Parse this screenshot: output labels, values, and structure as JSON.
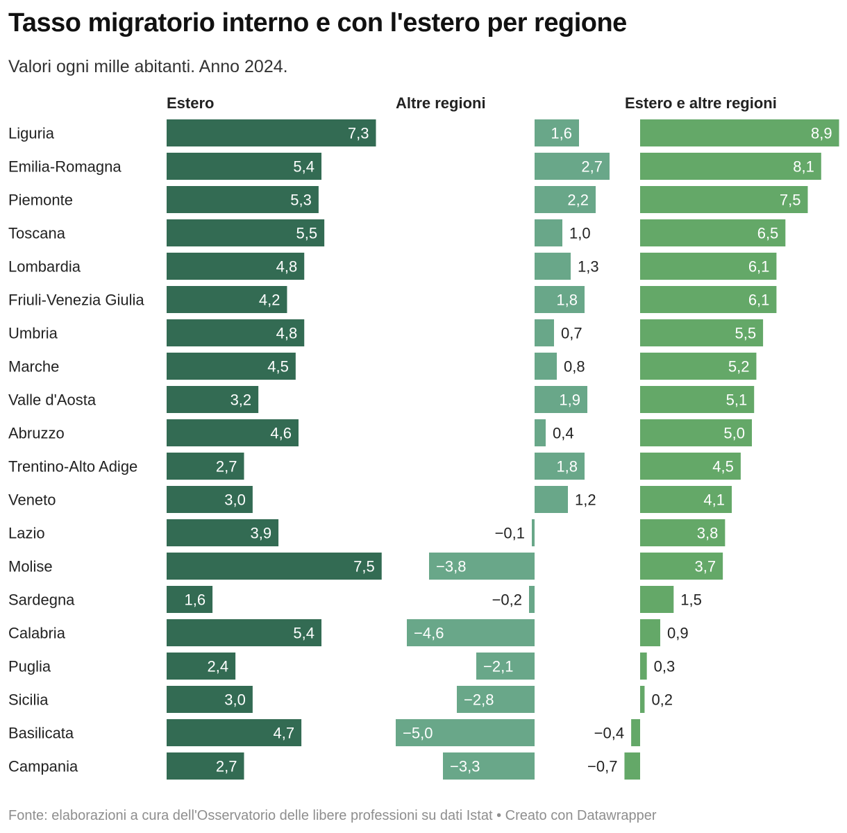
{
  "header": {
    "title": "Tasso migratorio interno e con l'estero per regione",
    "subtitle": "Valori ogni mille abitanti. Anno 2024."
  },
  "footer": {
    "source": "Fonte: elaborazioni a cura dell'Osservatorio delle libere professioni su dati Istat • Creato con Datawrapper"
  },
  "colors": {
    "estero": "#336b53",
    "altre_regioni": "#69a789",
    "totale": "#64a868"
  },
  "chart_data": {
    "type": "bar",
    "orientation": "horizontal",
    "categories": [
      "Liguria",
      "Emilia-Romagna",
      "Piemonte",
      "Toscana",
      "Lombardia",
      "Friuli-Venezia Giulia",
      "Umbria",
      "Marche",
      "Valle d'Aosta",
      "Abruzzo",
      "Trentino-Alto Adige",
      "Veneto",
      "Lazio",
      "Molise",
      "Sardegna",
      "Calabria",
      "Puglia",
      "Sicilia",
      "Basilicata",
      "Campania"
    ],
    "series": [
      {
        "name": "Estero",
        "values": [
          7.3,
          5.4,
          5.3,
          5.5,
          4.8,
          4.2,
          4.8,
          4.5,
          3.2,
          4.6,
          2.7,
          3.0,
          3.9,
          7.5,
          1.6,
          5.4,
          2.4,
          3.0,
          4.7,
          2.7
        ]
      },
      {
        "name": "Altre regioni",
        "values": [
          1.6,
          2.7,
          2.2,
          1.0,
          1.3,
          1.8,
          0.7,
          0.8,
          1.9,
          0.4,
          1.8,
          1.2,
          -0.1,
          -3.8,
          -0.2,
          -4.6,
          -2.1,
          -2.8,
          -5.0,
          -3.3
        ]
      },
      {
        "name": "Estero e altre regioni",
        "values": [
          8.9,
          8.1,
          7.5,
          6.5,
          6.1,
          6.1,
          5.5,
          5.2,
          5.1,
          5.0,
          4.5,
          4.1,
          3.8,
          3.7,
          1.5,
          0.9,
          0.3,
          0.2,
          -0.4,
          -0.7
        ]
      }
    ],
    "value_labels": [
      [
        "7,3",
        "5,4",
        "5,3",
        "5,5",
        "4,8",
        "4,2",
        "4,8",
        "4,5",
        "3,2",
        "4,6",
        "2,7",
        "3,0",
        "3,9",
        "7,5",
        "1,6",
        "5,4",
        "2,4",
        "3,0",
        "4,7",
        "2,7"
      ],
      [
        "1,6",
        "2,7",
        "2,2",
        "1,0",
        "1,3",
        "1,8",
        "0,7",
        "0,8",
        "1,9",
        "0,4",
        "1,8",
        "1,2",
        "−0,1",
        "−3,8",
        "−0,2",
        "−4,6",
        "−2,1",
        "−2,8",
        "−5,0",
        "−3,3"
      ],
      [
        "8,9",
        "8,1",
        "7,5",
        "6,5",
        "6,1",
        "6,1",
        "5,5",
        "5,2",
        "5,1",
        "5,0",
        "4,5",
        "4,1",
        "3,8",
        "3,7",
        "1,5",
        "0,9",
        "0,3",
        "0,2",
        "−0,4",
        "−0,7"
      ]
    ],
    "title": "Tasso migratorio interno e con l'estero per regione",
    "subtitle": "Valori ogni mille abitanti. Anno 2024.",
    "grid": false,
    "legend": "none"
  }
}
